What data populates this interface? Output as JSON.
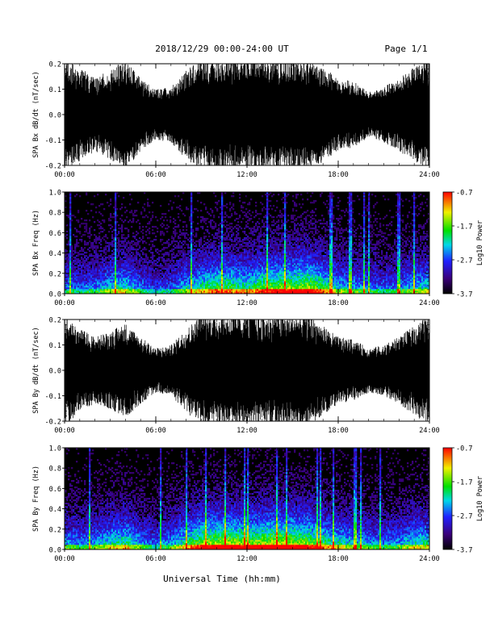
{
  "header": {
    "title": "2018/12/29  00:00-24:00 UT",
    "page": "Page 1/1"
  },
  "footer": {
    "xlabel": "Universal Time (hh:mm)"
  },
  "chart_data": [
    {
      "type": "line",
      "id": "bx-dbdt",
      "ylabel": "SPA Bx dB/dt (nT/sec)",
      "ylim": [
        -0.2,
        0.2
      ],
      "yticks": [
        "-0.2",
        "-0.1",
        "0.0",
        "0.1",
        "0.2"
      ],
      "yticks_values": [
        -0.2,
        -0.1,
        0.0,
        0.1,
        0.2
      ],
      "xlim": [
        0,
        24
      ],
      "xticks": [
        "00:00",
        "06:00",
        "12:00",
        "18:00",
        "24:00"
      ],
      "xticks_values": [
        0,
        6,
        12,
        18,
        24
      ],
      "x": [
        0,
        1,
        2,
        3,
        4,
        5,
        6,
        7,
        8,
        9,
        10,
        11,
        12,
        13,
        14,
        15,
        16,
        17,
        18,
        19,
        20,
        21,
        22,
        23,
        24
      ],
      "amplitude": [
        0.2,
        0.17,
        0.13,
        0.16,
        0.2,
        0.13,
        0.09,
        0.1,
        0.16,
        0.2,
        0.2,
        0.2,
        0.2,
        0.2,
        0.2,
        0.2,
        0.2,
        0.17,
        0.13,
        0.12,
        0.08,
        0.1,
        0.13,
        0.17,
        0.2
      ],
      "color": "#000000"
    },
    {
      "type": "heatmap",
      "id": "bx-spectrogram",
      "ylabel": "SPA Bx Freq (Hz)",
      "ylim": [
        0.0,
        1.0
      ],
      "yticks": [
        "0.0",
        "0.2",
        "0.4",
        "0.6",
        "0.8",
        "1.0"
      ],
      "yticks_values": [
        0.0,
        0.2,
        0.4,
        0.6,
        0.8,
        1.0
      ],
      "xlim": [
        0,
        24
      ],
      "xticks": [
        "00:00",
        "06:00",
        "12:00",
        "18:00",
        "24:00"
      ],
      "xticks_values": [
        0,
        6,
        12,
        18,
        24
      ],
      "x": [
        0,
        1,
        2,
        3,
        4,
        5,
        6,
        7,
        8,
        9,
        10,
        11,
        12,
        13,
        14,
        15,
        16,
        17,
        18,
        19,
        20,
        21,
        22,
        23,
        24
      ],
      "activity": [
        0.45,
        0.4,
        0.45,
        0.55,
        0.6,
        0.45,
        0.35,
        0.4,
        0.55,
        0.65,
        0.7,
        0.7,
        0.65,
        0.75,
        0.8,
        0.8,
        0.85,
        0.7,
        0.55,
        0.5,
        0.45,
        0.4,
        0.45,
        0.55,
        0.6
      ],
      "colorbar": {
        "label": "Log10 Power",
        "range": [
          -3.7,
          -0.7
        ],
        "ticks": [
          "-0.7",
          "-1.7",
          "-2.7",
          "-3.7"
        ],
        "ticks_values": [
          -0.7,
          -1.7,
          -2.7,
          -3.7
        ]
      }
    },
    {
      "type": "line",
      "id": "by-dbdt",
      "ylabel": "SPA By dB/dt (nT/sec)",
      "ylim": [
        -0.2,
        0.2
      ],
      "yticks": [
        "-0.2",
        "-0.1",
        "0.0",
        "0.1",
        "0.2"
      ],
      "yticks_values": [
        -0.2,
        -0.1,
        0.0,
        0.1,
        0.2
      ],
      "xlim": [
        0,
        24
      ],
      "xticks": [
        "00:00",
        "06:00",
        "12:00",
        "18:00",
        "24:00"
      ],
      "xticks_values": [
        0,
        6,
        12,
        18,
        24
      ],
      "x": [
        0,
        1,
        2,
        3,
        4,
        5,
        6,
        7,
        8,
        9,
        10,
        11,
        12,
        13,
        14,
        15,
        16,
        17,
        18,
        19,
        20,
        21,
        22,
        23,
        24
      ],
      "amplitude": [
        0.2,
        0.15,
        0.12,
        0.14,
        0.17,
        0.12,
        0.08,
        0.09,
        0.15,
        0.2,
        0.2,
        0.2,
        0.2,
        0.2,
        0.2,
        0.2,
        0.2,
        0.16,
        0.12,
        0.11,
        0.08,
        0.09,
        0.12,
        0.16,
        0.2
      ],
      "color": "#000000"
    },
    {
      "type": "heatmap",
      "id": "by-spectrogram",
      "ylabel": "SPA By Freq (Hz)",
      "ylim": [
        0.0,
        1.0
      ],
      "yticks": [
        "0.0",
        "0.2",
        "0.4",
        "0.6",
        "0.8",
        "1.0"
      ],
      "yticks_values": [
        0.0,
        0.2,
        0.4,
        0.6,
        0.8,
        1.0
      ],
      "xlim": [
        0,
        24
      ],
      "xticks": [
        "00:00",
        "06:00",
        "12:00",
        "18:00",
        "24:00"
      ],
      "xticks_values": [
        0,
        6,
        12,
        18,
        24
      ],
      "x": [
        0,
        1,
        2,
        3,
        4,
        5,
        6,
        7,
        8,
        9,
        10,
        11,
        12,
        13,
        14,
        15,
        16,
        17,
        18,
        19,
        20,
        21,
        22,
        23,
        24
      ],
      "activity": [
        0.5,
        0.45,
        0.5,
        0.6,
        0.65,
        0.5,
        0.4,
        0.5,
        0.65,
        0.8,
        0.85,
        0.85,
        0.8,
        0.85,
        0.9,
        0.85,
        0.8,
        0.7,
        0.6,
        0.55,
        0.5,
        0.45,
        0.5,
        0.6,
        0.6
      ],
      "colorbar": {
        "label": "Log10 Power",
        "range": [
          -3.7,
          -0.7
        ],
        "ticks": [
          "-0.7",
          "-1.7",
          "-2.7",
          "-3.7"
        ],
        "ticks_values": [
          -0.7,
          -1.7,
          -2.7,
          -3.7
        ]
      }
    }
  ]
}
